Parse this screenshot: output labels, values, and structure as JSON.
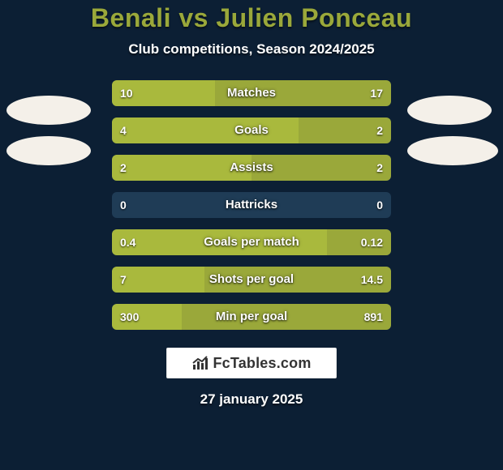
{
  "card": {
    "background_color": "#0c1f34",
    "title": "Benali vs Julien Ponceau",
    "title_color": "#9aa83a",
    "title_fontsize": 32,
    "subtitle": "Club competitions, Season 2024/2025",
    "subtitle_color": "#ffffff",
    "subtitle_fontsize": 17
  },
  "bars": {
    "track_color": "#1f3c56",
    "left_color": "#a9b93d",
    "right_color": "#9aa83a",
    "rows": [
      {
        "label": "Matches",
        "left": "10",
        "right": "17",
        "left_pct": 37,
        "right_pct": 63
      },
      {
        "label": "Goals",
        "left": "4",
        "right": "2",
        "left_pct": 67,
        "right_pct": 33
      },
      {
        "label": "Assists",
        "left": "2",
        "right": "2",
        "left_pct": 50,
        "right_pct": 50
      },
      {
        "label": "Hattricks",
        "left": "0",
        "right": "0",
        "left_pct": 0,
        "right_pct": 0
      },
      {
        "label": "Goals per match",
        "left": "0.4",
        "right": "0.12",
        "left_pct": 77,
        "right_pct": 23
      },
      {
        "label": "Shots per goal",
        "left": "7",
        "right": "14.5",
        "left_pct": 33,
        "right_pct": 67
      },
      {
        "label": "Min per goal",
        "left": "300",
        "right": "891",
        "left_pct": 25,
        "right_pct": 75
      }
    ]
  },
  "footer": {
    "brand": "FcTables.com",
    "icon_color": "#333333",
    "date": "27 january 2025",
    "date_color": "#ffffff",
    "date_fontsize": 17
  }
}
